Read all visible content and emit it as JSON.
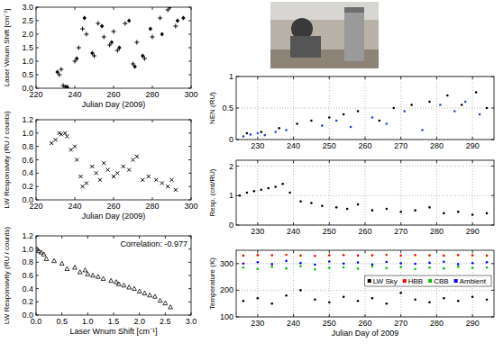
{
  "chart_data": [
    {
      "type": "scatter",
      "x_label": "Julian Day (2009)",
      "y_label": "Laser Wnum Shift [cm⁻¹]",
      "xlim": [
        220,
        300
      ],
      "ylim": [
        0,
        3
      ],
      "xticks": [
        220,
        240,
        260,
        280,
        300
      ],
      "yticks": [
        {
          "value": 0,
          "label": "0.0"
        },
        {
          "value": 0.5,
          "label": "0.5"
        },
        {
          "value": 1,
          "label": "1.0"
        },
        {
          "value": 1.5,
          "label": "1.5"
        },
        {
          "value": 2,
          "label": "2.0"
        },
        {
          "value": 2.5,
          "label": "2.5"
        },
        {
          "value": 3,
          "label": "3.0"
        }
      ],
      "grid": false,
      "series": [
        {
          "marker": "plus",
          "color": "#000000",
          "x": [
            232,
            233,
            234,
            235,
            236,
            240,
            242,
            244,
            246,
            250,
            252,
            255,
            258,
            260,
            262,
            266,
            270,
            272,
            276,
            280,
            284,
            288,
            292
          ],
          "values": [
            0.5,
            0.7,
            0.1,
            0.05,
            0.0,
            1.0,
            1.5,
            2.2,
            2.0,
            1.2,
            2.4,
            1.9,
            1.6,
            2.1,
            1.4,
            2.4,
            0.9,
            1.7,
            1.1,
            1.9,
            2.6,
            2.9,
            2.3
          ]
        },
        {
          "marker": "diamond",
          "color": "#000000",
          "x": [
            231,
            236,
            241,
            245,
            249,
            254,
            259,
            263,
            268,
            271,
            275,
            279,
            285,
            289,
            293,
            296
          ],
          "values": [
            0.6,
            0.05,
            1.1,
            2.6,
            1.3,
            2.3,
            1.7,
            1.5,
            2.5,
            0.8,
            1.2,
            2.2,
            2.0,
            3.0,
            2.5,
            2.6
          ]
        }
      ]
    },
    {
      "type": "scatter",
      "x_label": "Julian Day (2009)",
      "y_label": "LW Responsivity (RU / counts)",
      "xlim": [
        220,
        300
      ],
      "ylim": [
        0,
        1.2
      ],
      "xticks": [
        220,
        240,
        260,
        280,
        300
      ],
      "yticks": [
        {
          "value": 0,
          "label": "0.0"
        },
        {
          "value": 0.2,
          "label": "0.2"
        },
        {
          "value": 0.4,
          "label": "0.4"
        },
        {
          "value": 0.6,
          "label": "0.6"
        },
        {
          "value": 0.8,
          "label": "0.8"
        },
        {
          "value": 1,
          "label": "1.0"
        },
        {
          "value": 1.2,
          "label": "1.2"
        }
      ],
      "grid": false,
      "series": [
        {
          "marker": "x",
          "color": "#000000",
          "x": [
            228,
            230,
            232,
            233,
            235,
            236,
            238,
            240,
            241,
            243,
            244,
            246,
            249,
            251,
            253,
            255,
            257,
            260,
            262,
            265,
            268,
            270,
            272,
            275,
            278,
            282,
            285,
            288,
            290,
            292
          ],
          "values": [
            0.85,
            0.9,
            1.0,
            0.98,
            1.0,
            0.95,
            0.75,
            0.8,
            0.6,
            0.35,
            0.2,
            0.25,
            0.5,
            0.4,
            0.3,
            0.55,
            0.45,
            0.35,
            0.4,
            0.5,
            0.45,
            0.6,
            0.65,
            0.3,
            0.35,
            0.3,
            0.25,
            0.2,
            0.3,
            0.15
          ]
        }
      ]
    },
    {
      "type": "scatter",
      "x_label": "Laser Wnum Shift [cm⁻¹]",
      "y_label": "LW Responsivity (RU / counts)",
      "annotation": "Correlation: -0.977",
      "xlim": [
        0,
        3
      ],
      "ylim": [
        0,
        1.2
      ],
      "xticks": [
        {
          "value": 0,
          "label": "0.0"
        },
        {
          "value": 0.5,
          "label": "0.5"
        },
        {
          "value": 1,
          "label": "1.0"
        },
        {
          "value": 1.5,
          "label": "1.5"
        },
        {
          "value": 2,
          "label": "2.0"
        },
        {
          "value": 2.5,
          "label": "2.5"
        },
        {
          "value": 3,
          "label": "3.0"
        }
      ],
      "yticks": [
        {
          "value": 0,
          "label": "0.0"
        },
        {
          "value": 0.2,
          "label": "0.2"
        },
        {
          "value": 0.4,
          "label": "0.4"
        },
        {
          "value": 0.6,
          "label": "0.6"
        },
        {
          "value": 0.8,
          "label": "0.8"
        },
        {
          "value": 1,
          "label": "1.0"
        },
        {
          "value": 1.2,
          "label": "1.2"
        }
      ],
      "grid": false,
      "series": [
        {
          "marker": "triangle",
          "color": "#000000",
          "x": [
            0.02,
            0.05,
            0.1,
            0.15,
            0.2,
            0.35,
            0.5,
            0.6,
            0.75,
            0.85,
            0.95,
            1.0,
            1.1,
            1.2,
            1.3,
            1.45,
            1.55,
            1.6,
            1.7,
            1.8,
            1.9,
            2.0,
            2.1,
            2.2,
            2.3,
            2.4,
            2.5,
            2.6
          ],
          "values": [
            1.0,
            0.97,
            0.95,
            0.92,
            0.85,
            0.82,
            0.78,
            0.7,
            0.72,
            0.65,
            0.68,
            0.62,
            0.6,
            0.58,
            0.55,
            0.52,
            0.5,
            0.47,
            0.45,
            0.42,
            0.4,
            0.36,
            0.33,
            0.3,
            0.28,
            0.22,
            0.18,
            0.12
          ]
        }
      ]
    },
    {
      "type": "scatter",
      "y_label": "NEN (RU)",
      "xlim": [
        224,
        296
      ],
      "ylim": [
        0,
        1
      ],
      "xticks": [
        230,
        240,
        250,
        260,
        270,
        280,
        290
      ],
      "yticks": [
        0,
        0.5,
        1
      ],
      "grid": true,
      "series": [
        {
          "marker": "dot",
          "color": "#000000",
          "x": [
            227,
            231,
            236,
            241,
            245,
            250,
            254,
            258,
            264,
            268,
            273,
            278,
            283,
            287,
            291,
            294
          ],
          "values": [
            0.1,
            0.12,
            0.18,
            0.25,
            0.3,
            0.35,
            0.4,
            0.45,
            0.3,
            0.5,
            0.55,
            0.6,
            0.7,
            0.55,
            0.75,
            0.5
          ]
        },
        {
          "marker": "dot",
          "color": "#2040e0",
          "x": [
            226,
            228,
            230,
            232,
            235,
            238,
            248,
            252,
            256,
            262,
            266,
            271,
            276,
            281,
            285,
            288,
            292
          ],
          "values": [
            0.05,
            0.08,
            0.1,
            0.07,
            0.12,
            0.15,
            0.22,
            0.3,
            0.2,
            0.35,
            0.25,
            0.45,
            0.15,
            0.55,
            0.45,
            0.6,
            0.4
          ]
        }
      ]
    },
    {
      "type": "scatter",
      "y_label": "Resp. (cnt/RU)",
      "xlim": [
        224,
        296
      ],
      "ylim": [
        0,
        2.2
      ],
      "xticks": [
        230,
        240,
        250,
        260,
        270,
        280,
        290
      ],
      "yticks": [
        0,
        1,
        2
      ],
      "grid": true,
      "series": [
        {
          "marker": "dot",
          "color": "#000000",
          "x": [
            225,
            227,
            229,
            231,
            233,
            235,
            237,
            239,
            242,
            245,
            248,
            252,
            255,
            258,
            262,
            266,
            270,
            274,
            278,
            282,
            286,
            290,
            294
          ],
          "values": [
            1.0,
            1.1,
            1.15,
            1.2,
            1.25,
            1.3,
            1.4,
            1.1,
            0.8,
            0.75,
            0.65,
            0.6,
            0.55,
            0.7,
            0.5,
            0.55,
            0.45,
            0.5,
            0.6,
            0.4,
            0.45,
            0.35,
            0.4
          ]
        }
      ]
    },
    {
      "type": "scatter",
      "x_label": "Julian Day of 2009",
      "y_label": "Temperature (K)",
      "xlim": [
        224,
        296
      ],
      "ylim": [
        100,
        350
      ],
      "xticks": [
        230,
        240,
        250,
        260,
        270,
        280,
        290
      ],
      "yticks": [
        100,
        200,
        300
      ],
      "grid": true,
      "legend": "right",
      "series": [
        {
          "name": "LW Sky",
          "marker": "dot",
          "color": "#000000",
          "x": [
            226,
            230,
            234,
            238,
            242,
            246,
            250,
            254,
            258,
            262,
            266,
            270,
            274,
            278,
            282,
            286,
            290,
            294
          ],
          "values": [
            160,
            170,
            150,
            180,
            200,
            165,
            155,
            175,
            160,
            170,
            150,
            190,
            165,
            155,
            170,
            160,
            175,
            165
          ]
        },
        {
          "name": "HBB",
          "marker": "dot",
          "color": "#ff0000",
          "x": [
            226,
            230,
            234,
            238,
            242,
            246,
            250,
            254,
            258,
            262,
            266,
            270,
            274,
            278,
            282,
            286,
            290,
            294
          ],
          "values": [
            330,
            332,
            331,
            333,
            330,
            329,
            331,
            332,
            330,
            331,
            333,
            330,
            332,
            331,
            330,
            332,
            331,
            330
          ]
        },
        {
          "name": "CBB",
          "marker": "dot",
          "color": "#00c000",
          "x": [
            226,
            230,
            234,
            238,
            242,
            246,
            250,
            254,
            258,
            262,
            266,
            270,
            274,
            278,
            282,
            286,
            290,
            294
          ],
          "values": [
            285,
            280,
            288,
            282,
            290,
            278,
            284,
            286,
            281,
            289,
            283,
            287,
            280,
            285,
            282,
            288,
            284,
            286
          ]
        },
        {
          "name": "Ambient",
          "marker": "dot",
          "color": "#0000ff",
          "x": [
            226,
            230,
            234,
            238,
            242,
            246,
            250,
            254,
            258,
            262,
            266,
            270,
            274,
            278,
            282,
            286,
            290,
            294
          ],
          "values": [
            300,
            305,
            298,
            310,
            302,
            296,
            308,
            300,
            304,
            297,
            306,
            301,
            299,
            303,
            307,
            298,
            302,
            305
          ]
        }
      ]
    }
  ]
}
